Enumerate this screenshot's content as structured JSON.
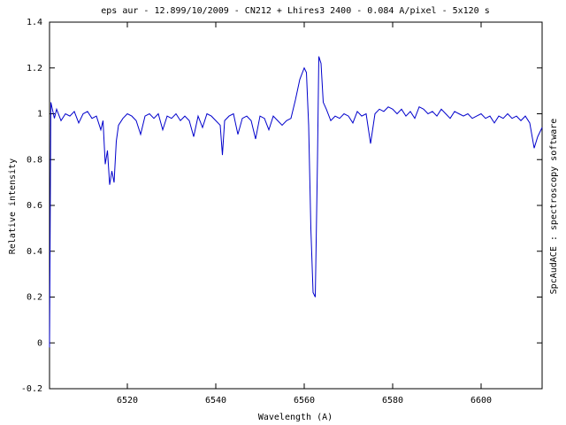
{
  "chart_data": {
    "type": "line",
    "title": "eps aur - 12.899/10/2009 - CN212 + Lhires3 2400 - 0.084 A/pixel - 5x120 s",
    "x_label": "Wavelength (A)",
    "y_label": "Relative intensity",
    "side_note": "SpcAudACE : spectroscopy software",
    "xlim": [
      6502.4,
      6613.8
    ],
    "ylim": [
      -0.2,
      1.4
    ],
    "xticks": [
      6520,
      6540,
      6560,
      6580,
      6600
    ],
    "yticks": [
      -0.2,
      0,
      0.2,
      0.4,
      0.6,
      0.8,
      1,
      1.2,
      1.4
    ],
    "x": [
      6502.4,
      6502.7,
      6503.5,
      6504,
      6505,
      6506,
      6507,
      6508,
      6509,
      6510,
      6511,
      6512,
      6513,
      6514,
      6514.5,
      6515,
      6515.5,
      6516,
      6516.5,
      6517,
      6517.5,
      6518,
      6519,
      6520,
      6521,
      6522,
      6523,
      6524,
      6525,
      6526,
      6527,
      6528,
      6529,
      6530,
      6531,
      6532,
      6533,
      6534,
      6535,
      6536,
      6537,
      6538,
      6539,
      6540,
      6541,
      6541.5,
      6542,
      6543,
      6544,
      6545,
      6546,
      6547,
      6548,
      6549,
      6550,
      6551,
      6552,
      6553,
      6554,
      6555,
      6556,
      6557,
      6558,
      6559,
      6560,
      6560.5,
      6561,
      6561.5,
      6562,
      6562.5,
      6563,
      6563.3,
      6563.8,
      6564.3,
      6565,
      6566,
      6567,
      6568,
      6569,
      6570,
      6571,
      6572,
      6573,
      6574,
      6575,
      6576,
      6577,
      6578,
      6579,
      6580,
      6581,
      6582,
      6583,
      6584,
      6585,
      6586,
      6587,
      6588,
      6589,
      6590,
      6591,
      6592,
      6593,
      6594,
      6595,
      6596,
      6597,
      6598,
      6599,
      6600,
      6601,
      6602,
      6603,
      6604,
      6605,
      6606,
      6607,
      6608,
      6609,
      6610,
      6611,
      6612,
      6612.8,
      6613.8
    ],
    "series": [
      {
        "color": "#0000cc",
        "values": [
          -0.02,
          1.05,
          0.98,
          1.02,
          0.97,
          1.0,
          0.99,
          1.01,
          0.96,
          1.0,
          1.01,
          0.98,
          0.99,
          0.93,
          0.97,
          0.78,
          0.84,
          0.69,
          0.75,
          0.7,
          0.88,
          0.95,
          0.98,
          1.0,
          0.99,
          0.97,
          0.91,
          0.99,
          1.0,
          0.98,
          1.0,
          0.93,
          0.99,
          0.98,
          1.0,
          0.97,
          0.99,
          0.97,
          0.9,
          0.99,
          0.94,
          1.0,
          0.99,
          0.97,
          0.95,
          0.82,
          0.97,
          0.99,
          1.0,
          0.91,
          0.98,
          0.99,
          0.97,
          0.89,
          0.99,
          0.98,
          0.93,
          0.99,
          0.97,
          0.95,
          0.97,
          0.98,
          1.06,
          1.15,
          1.2,
          1.18,
          0.95,
          0.5,
          0.22,
          0.2,
          0.8,
          1.25,
          1.22,
          1.05,
          1.02,
          0.97,
          0.99,
          0.98,
          1.0,
          0.99,
          0.96,
          1.01,
          0.99,
          1.0,
          0.87,
          1.0,
          1.02,
          1.01,
          1.03,
          1.02,
          1.0,
          1.02,
          0.99,
          1.01,
          0.98,
          1.03,
          1.02,
          1.0,
          1.01,
          0.99,
          1.02,
          1.0,
          0.98,
          1.01,
          1.0,
          0.99,
          1.0,
          0.98,
          0.99,
          1.0,
          0.98,
          0.99,
          0.96,
          0.99,
          0.98,
          1.0,
          0.98,
          0.99,
          0.97,
          0.99,
          0.96,
          0.85,
          0.9,
          0.94
        ]
      }
    ]
  }
}
